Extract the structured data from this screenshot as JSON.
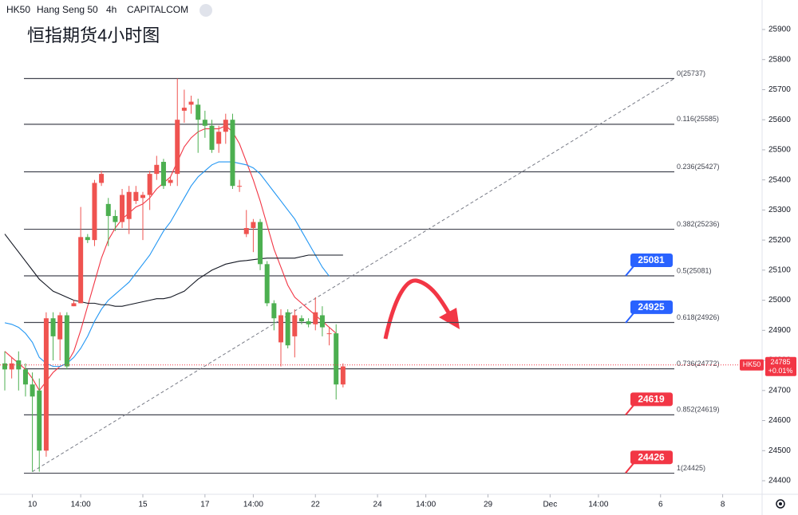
{
  "header": {
    "symbol": "HK50",
    "name": "Hang Seng 50",
    "interval": "4h",
    "source": "CAPITALCOM"
  },
  "chart_data": {
    "type": "candlestick",
    "title": "恒指期货4小时图",
    "open": [
      24790,
      24770,
      24800,
      24770,
      24720,
      24700,
      24500,
      24940,
      24870,
      24950,
      24980,
      24990,
      25210,
      25200,
      25390,
      25320,
      25280,
      25260,
      25270,
      25330,
      25340,
      25350,
      25420,
      25460,
      25390,
      25420,
      25630,
      25650,
      25650,
      25600,
      25580,
      25520,
      25560,
      25600,
      25380,
      25220,
      25240,
      25260,
      25120,
      24990,
      24860,
      24960,
      24880,
      24940,
      24930,
      24920,
      24950,
      24890,
      24890,
      24720
    ],
    "high": [
      24830,
      24810,
      24830,
      24790,
      24760,
      24740,
      24960,
      24960,
      24960,
      24960,
      25000,
      25310,
      25220,
      25400,
      25430,
      25340,
      25300,
      25370,
      25380,
      25380,
      25360,
      25430,
      25480,
      25470,
      25410,
      25737,
      25700,
      25680,
      25670,
      25630,
      25600,
      25580,
      25620,
      25620,
      25400,
      25300,
      25270,
      25270,
      25130,
      25000,
      24970,
      24970,
      24970,
      24950,
      24940,
      25010,
      24980,
      24910,
      24920,
      24790
    ],
    "low": [
      24700,
      24740,
      24700,
      24680,
      24430,
      24430,
      24480,
      24800,
      24800,
      24770,
      24980,
      24990,
      25190,
      25180,
      25380,
      25180,
      25230,
      25240,
      25220,
      25320,
      25200,
      25300,
      25400,
      25370,
      25380,
      25380,
      25590,
      25620,
      25490,
      25540,
      25490,
      25490,
      25520,
      25370,
      25360,
      25210,
      25160,
      25100,
      24980,
      24900,
      24780,
      24840,
      24810,
      24920,
      24910,
      24900,
      24880,
      24850,
      24670,
      24710
    ],
    "close": [
      24770,
      24790,
      24770,
      24720,
      24680,
      24500,
      24940,
      24880,
      24950,
      24780,
      24990,
      25210,
      25200,
      25390,
      25420,
      25280,
      25260,
      25350,
      25360,
      25360,
      25350,
      25420,
      25450,
      25380,
      25400,
      25600,
      25640,
      25660,
      25600,
      25580,
      25500,
      25560,
      25600,
      25380,
      25380,
      25240,
      25260,
      25120,
      24990,
      24940,
      24950,
      24850,
      24950,
      24930,
      24920,
      24960,
      24910,
      24890,
      24720,
      24780
    ],
    "up_color": "#ef5350",
    "down_color": "#4caf50",
    "moving_averages": [
      {
        "color": "#f23645",
        "values": [
          24830,
          24810,
          24790,
          24770,
          24740,
          24700,
          24730,
          24760,
          24780,
          24790,
          24830,
          24900,
          24980,
          25060,
          25140,
          25200,
          25240,
          25270,
          25290,
          25310,
          25320,
          25340,
          25370,
          25390,
          25410,
          25460,
          25510,
          25540,
          25560,
          25570,
          25570,
          25570,
          25580,
          25560,
          25520,
          25460,
          25400,
          25330,
          25250,
          25170,
          25110,
          25050,
          25010,
          24990,
          24970,
          24950,
          24930,
          24910,
          24890,
          null
        ]
      },
      {
        "color": "#2196f3",
        "values": [
          24925,
          24920,
          24910,
          24890,
          24860,
          24810,
          24790,
          24780,
          24780,
          24790,
          24810,
          24840,
          24880,
          24930,
          24970,
          25000,
          25020,
          25040,
          25060,
          25090,
          25120,
          25150,
          25190,
          25230,
          25260,
          25300,
          25340,
          25380,
          25410,
          25430,
          25450,
          25460,
          25460,
          25460,
          25455,
          25450,
          25440,
          25420,
          25390,
          25360,
          25330,
          25300,
          25270,
          25230,
          25190,
          25150,
          25110,
          25080,
          null,
          null
        ]
      },
      {
        "color": "#131722",
        "values": [
          25220,
          25190,
          25160,
          25130,
          25100,
          25070,
          25050,
          25030,
          25020,
          25010,
          25000,
          24995,
          24990,
          24990,
          24985,
          24985,
          24980,
          24980,
          24985,
          24990,
          24995,
          25000,
          25005,
          25005,
          25010,
          25020,
          25030,
          25050,
          25070,
          25085,
          25100,
          25110,
          25120,
          25125,
          25130,
          25132,
          25135,
          25138,
          25140,
          25140,
          25140,
          25140,
          25140,
          25145,
          25150,
          25150,
          25150,
          25150,
          25150,
          25150
        ]
      }
    ],
    "x_ticks": [
      {
        "index": 4,
        "label": "10"
      },
      {
        "index": 11,
        "label": "14:00"
      },
      {
        "index": 20,
        "label": "15"
      },
      {
        "index": 29,
        "label": "17"
      },
      {
        "index": 36,
        "label": "14:00"
      },
      {
        "index": 45,
        "label": "22"
      },
      {
        "index": 54,
        "label": "24"
      },
      {
        "index": 61,
        "label": "14:00"
      },
      {
        "index": 70,
        "label": "29"
      },
      {
        "index": 79,
        "label": "Dec"
      },
      {
        "index": 86,
        "label": "14:00"
      },
      {
        "index": 95,
        "label": "6"
      },
      {
        "index": 104,
        "label": "8"
      }
    ],
    "ylim": [
      24340,
      25990
    ],
    "yticks": [
      24400,
      24500,
      24600,
      24700,
      24800,
      24900,
      25000,
      25100,
      25200,
      25300,
      25400,
      25500,
      25600,
      25700,
      25800,
      25900
    ],
    "fib_levels": [
      {
        "value": 25737,
        "label": "0(25737)"
      },
      {
        "value": 25585,
        "label": "0.116(25585)"
      },
      {
        "value": 25427,
        "label": "0.236(25427)"
      },
      {
        "value": 25236,
        "label": "0.382(25236)"
      },
      {
        "value": 25081,
        "label": "0.5(25081)"
      },
      {
        "value": 24926,
        "label": "0.618(24926)"
      },
      {
        "value": 24772,
        "label": "0.736(24772)"
      },
      {
        "value": 24619,
        "label": "0.852(24619)"
      },
      {
        "value": 24425,
        "label": "1(24425)"
      }
    ],
    "callouts": [
      {
        "value": 25081,
        "color": "#2962ff"
      },
      {
        "value": 24925,
        "color": "#2962ff"
      },
      {
        "value": 24619,
        "color": "#f23645"
      },
      {
        "value": 24426,
        "color": "#f23645"
      }
    ],
    "trendline": {
      "from_index": 4,
      "from_value": 24430,
      "to_index": 97,
      "to_value": 25737
    },
    "last_price": {
      "tag": "HK50",
      "value": 24785,
      "change": "+0.01%",
      "color": "#f23645"
    }
  }
}
